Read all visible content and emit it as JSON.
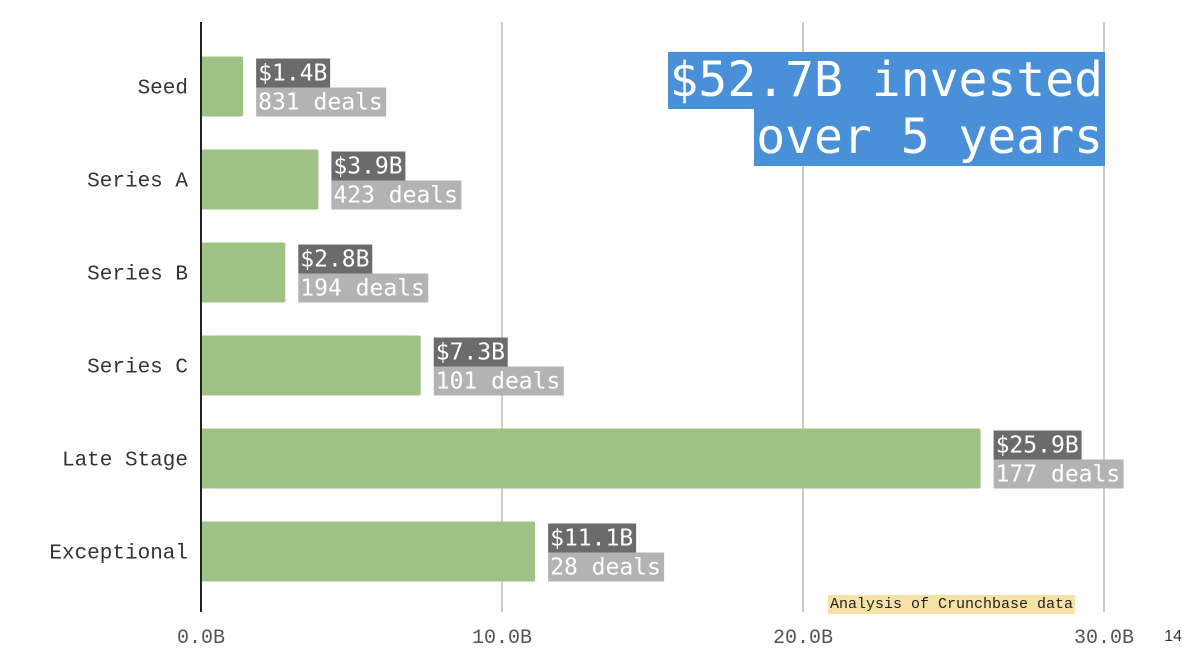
{
  "chart_data": {
    "type": "bar",
    "orientation": "horizontal",
    "categories": [
      "Seed",
      "Series A",
      "Series B",
      "Series C",
      "Late Stage",
      "Exceptional"
    ],
    "values": [
      1.4,
      3.9,
      2.8,
      7.3,
      25.9,
      11.1
    ],
    "value_labels": [
      "$1.4B",
      "$3.9B",
      "$2.8B",
      "$7.3B",
      "$25.9B",
      "$11.1B"
    ],
    "deal_labels": [
      "831 deals",
      "423 deals",
      "194 deals",
      "101 deals",
      "177 deals",
      "28 deals"
    ],
    "xlim": [
      0,
      30
    ],
    "x_ticks": [
      0,
      10,
      20,
      30
    ],
    "x_tick_labels": [
      "0.0B",
      "10.0B",
      "20.0B",
      "30.0B"
    ],
    "grid": true,
    "colors": {
      "bar": "#9dc283",
      "value_label_bg": "#6b6b6b",
      "deal_label_bg": "#b3b3b3",
      "grid": "#cccccc"
    }
  },
  "callout": {
    "line1": "$52.7B invested",
    "line2": "over 5 years",
    "color": "#4a90d9"
  },
  "source_note": "Analysis of Crunchbase data",
  "page_number": "14"
}
